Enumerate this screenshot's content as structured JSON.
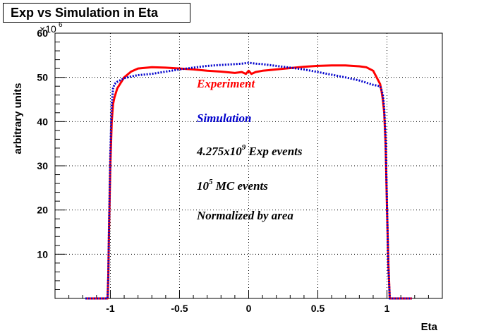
{
  "chart_data": {
    "type": "line",
    "title": "Exp vs Simulation in Eta",
    "xlabel": "Eta",
    "ylabel": "arbitrary units",
    "y_multiplier_base": "10",
    "y_multiplier_exp": "6",
    "xlim": [
      -1.4,
      1.4
    ],
    "ylim": [
      0,
      60
    ],
    "x_ticks": [
      {
        "value": -1,
        "label": "-1"
      },
      {
        "value": -0.5,
        "label": "-0.5"
      },
      {
        "value": 0,
        "label": "0"
      },
      {
        "value": 0.5,
        "label": "0.5"
      },
      {
        "value": 1,
        "label": "1"
      }
    ],
    "y_ticks": [
      {
        "value": 10,
        "label": "10"
      },
      {
        "value": 20,
        "label": "20"
      },
      {
        "value": 30,
        "label": "30"
      },
      {
        "value": 40,
        "label": "40"
      },
      {
        "value": 50,
        "label": "50"
      },
      {
        "value": 60,
        "label": "60"
      }
    ],
    "grid": true,
    "series": [
      {
        "name": "Experiment",
        "color": "#ff0000",
        "style": "solid",
        "x": [
          -1.18,
          -1.02,
          -1.015,
          -1.01,
          -1.0,
          -0.99,
          -0.98,
          -0.97,
          -0.96,
          -0.95,
          -0.9,
          -0.85,
          -0.8,
          -0.7,
          -0.6,
          -0.5,
          -0.4,
          -0.3,
          -0.2,
          -0.1,
          -0.05,
          -0.02,
          0.0,
          0.02,
          0.05,
          0.1,
          0.2,
          0.3,
          0.4,
          0.5,
          0.6,
          0.7,
          0.8,
          0.85,
          0.9,
          0.95,
          0.96,
          0.97,
          0.98,
          0.99,
          1.0,
          1.01,
          1.02,
          1.05,
          1.18
        ],
        "y": [
          0,
          0,
          5,
          15,
          30,
          40,
          44,
          45.5,
          46.5,
          47.5,
          50,
          51.3,
          52,
          52.3,
          52.2,
          52,
          51.8,
          51.5,
          51.3,
          51,
          51.2,
          50.8,
          51.5,
          50.8,
          51.2,
          51.5,
          51.8,
          52.1,
          52.4,
          52.6,
          52.7,
          52.7,
          52.5,
          52.3,
          51.5,
          48.5,
          47,
          45,
          42,
          35,
          20,
          8,
          0,
          0,
          0
        ]
      },
      {
        "name": "Simulation",
        "color": "#0000cc",
        "style": "dotted",
        "x": [
          -1.18,
          -1.02,
          -1.015,
          -1.01,
          -1.0,
          -0.99,
          -0.98,
          -0.97,
          -0.95,
          -0.9,
          -0.85,
          -0.8,
          -0.7,
          -0.6,
          -0.5,
          -0.4,
          -0.3,
          -0.2,
          -0.1,
          -0.05,
          0.0,
          0.05,
          0.1,
          0.2,
          0.3,
          0.4,
          0.5,
          0.6,
          0.7,
          0.8,
          0.85,
          0.9,
          0.95,
          0.96,
          0.97,
          0.98,
          0.99,
          1.0,
          1.01,
          1.02,
          1.05,
          1.18
        ],
        "y": [
          0,
          0,
          5,
          16,
          33,
          44,
          47.5,
          48.5,
          49,
          49.8,
          50.2,
          50.5,
          50.8,
          51.3,
          51.8,
          52.2,
          52.6,
          52.8,
          53,
          53.1,
          53.3,
          53.1,
          53,
          52.6,
          52.2,
          51.8,
          51.2,
          50.6,
          50,
          49.3,
          48.8,
          48.3,
          48,
          47.2,
          46,
          43,
          36,
          21,
          7,
          0,
          0,
          0
        ]
      }
    ],
    "annotations": [
      {
        "text": "Experiment",
        "color": "#ff0000"
      },
      {
        "text": "Simulation",
        "color": "#0000cc"
      },
      {
        "text": "4.275x10",
        "sup": "9",
        "suffix": " Exp events",
        "color": "#000000"
      },
      {
        "text": "10",
        "sup": "5",
        "suffix": " MC events",
        "color": "#000000"
      },
      {
        "text": "Normalized by area",
        "color": "#000000"
      }
    ]
  }
}
